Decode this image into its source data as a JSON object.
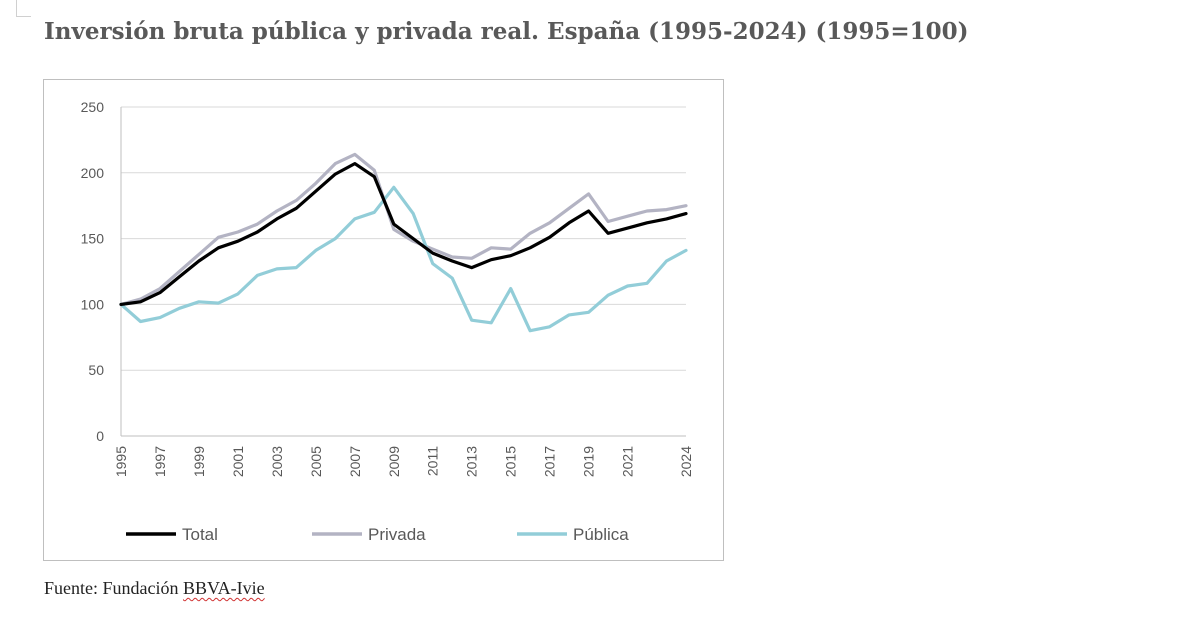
{
  "title": "Inversión bruta pública y privada real. España (1995-2024) (1995=100)",
  "source": {
    "prefix": "Fuente: Fundación",
    "org": "BBVA-Ivie"
  },
  "chart_data": {
    "type": "line",
    "title": "Inversión bruta pública y privada real. España (1995-2024) (1995=100)",
    "xlabel": "",
    "ylabel": "",
    "ylim": [
      0,
      250
    ],
    "yticks": [
      0,
      50,
      100,
      150,
      200,
      250
    ],
    "grid": true,
    "legend_position": "bottom",
    "x": [
      1995,
      1996,
      1997,
      1998,
      1999,
      2000,
      2001,
      2002,
      2003,
      2004,
      2005,
      2006,
      2007,
      2008,
      2009,
      2010,
      2011,
      2012,
      2013,
      2014,
      2015,
      2016,
      2017,
      2018,
      2019,
      2020,
      2021,
      2022,
      2023,
      2024
    ],
    "xtick_labels": [
      "1995",
      "1997",
      "1999",
      "2001",
      "2003",
      "2005",
      "2007",
      "2009",
      "2011",
      "2013",
      "2015",
      "2017",
      "2019",
      "2021",
      "2024"
    ],
    "series": [
      {
        "name": "Total",
        "color": "#000000",
        "values": [
          100,
          102,
          109,
          121,
          133,
          143,
          148,
          155,
          165,
          173,
          186,
          199,
          207,
          197,
          161,
          150,
          139,
          133,
          128,
          134,
          137,
          143,
          151,
          162,
          171,
          154,
          158,
          162,
          165,
          169
        ]
      },
      {
        "name": "Privada",
        "color": "#b3b3c3",
        "values": [
          100,
          104,
          112,
          125,
          138,
          151,
          155,
          161,
          171,
          179,
          192,
          207,
          214,
          202,
          157,
          148,
          142,
          136,
          135,
          143,
          142,
          154,
          162,
          173,
          184,
          163,
          167,
          171,
          172,
          175
        ]
      },
      {
        "name": "Pública",
        "color": "#92cdd8",
        "values": [
          100,
          87,
          90,
          97,
          102,
          101,
          108,
          122,
          127,
          128,
          141,
          150,
          165,
          170,
          189,
          169,
          131,
          120,
          88,
          86,
          112,
          80,
          83,
          92,
          94,
          107,
          114,
          116,
          133,
          141
        ]
      }
    ]
  }
}
